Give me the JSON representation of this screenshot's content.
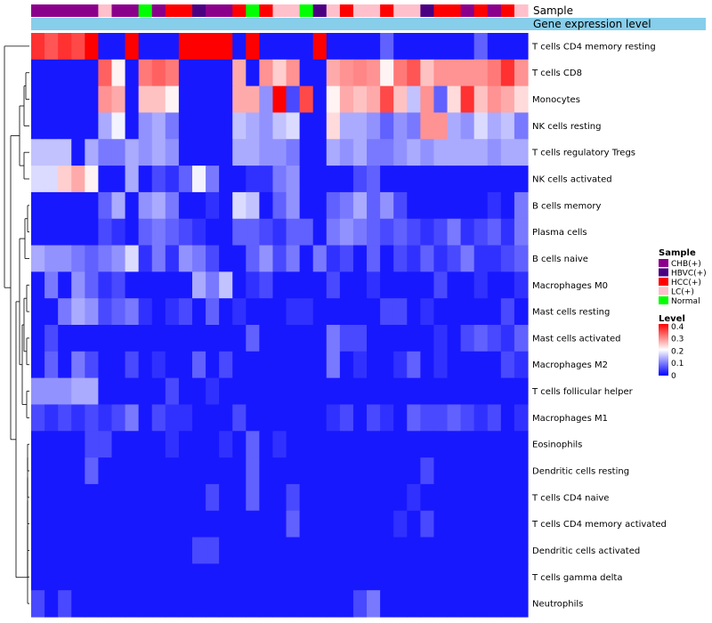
{
  "chart_data": {
    "type": "heatmap",
    "annotation_labels": {
      "sample": "Sample",
      "gene_level": "Gene expression level"
    },
    "sample_legend": {
      "title": "Sample",
      "entries": [
        {
          "label": "CHB(+)",
          "color": "#8B008B"
        },
        {
          "label": "HBVC(+)",
          "color": "#4B0082"
        },
        {
          "label": "HCC(+)",
          "color": "#FF0000"
        },
        {
          "label": "LC(+)",
          "color": "#FFC0CB"
        },
        {
          "label": "Normal",
          "color": "#00FF00"
        }
      ]
    },
    "level_legend": {
      "title": "Level",
      "ticks": [
        "0.4",
        "0.3",
        "0.2",
        "0.1",
        "0"
      ],
      "tick_values": [
        0.4,
        0.3,
        0.2,
        0.1,
        0
      ],
      "range": [
        0,
        0.42
      ],
      "colors": [
        "#0000FF",
        "#FFFFFF",
        "#FF0000"
      ]
    },
    "sample_groups": [
      "CHB",
      "CHB",
      "CHB",
      "CHB",
      "CHB",
      "LC",
      "CHB",
      "CHB",
      "Normal",
      "CHB",
      "HCC",
      "HCC",
      "HBVC",
      "CHB",
      "CHB",
      "HCC",
      "Normal",
      "HCC",
      "LC",
      "LC",
      "Normal",
      "HBVC",
      "LC",
      "HCC",
      "LC",
      "LC",
      "HCC",
      "LC",
      "LC",
      "HBVC",
      "HCC",
      "HCC",
      "CHB",
      "HCC",
      "CHB",
      "HCC",
      "LC"
    ],
    "rows": [
      {
        "label": "T cells CD4 memory resting",
        "values": [
          0.38,
          0.35,
          0.38,
          0.36,
          0.42,
          0.02,
          0.02,
          0.42,
          0.02,
          0.02,
          0.02,
          0.42,
          0.42,
          0.42,
          0.42,
          0.02,
          0.42,
          0.02,
          0.02,
          0.02,
          0.02,
          0.42,
          0.02,
          0.02,
          0.02,
          0.02,
          0.08,
          0.02,
          0.02,
          0.02,
          0.02,
          0.02,
          0.02,
          0.08,
          0.02,
          0.02,
          0.02
        ]
      },
      {
        "label": "T cells CD8",
        "values": [
          0.02,
          0.02,
          0.02,
          0.02,
          0.02,
          0.34,
          0.22,
          0.02,
          0.32,
          0.34,
          0.32,
          0.02,
          0.02,
          0.02,
          0.02,
          0.28,
          0.02,
          0.3,
          0.25,
          0.3,
          0.02,
          0.02,
          0.28,
          0.3,
          0.31,
          0.3,
          0.22,
          0.32,
          0.35,
          0.26,
          0.3,
          0.3,
          0.3,
          0.3,
          0.32,
          0.38,
          0.3
        ]
      },
      {
        "label": "Monocytes",
        "values": [
          0.02,
          0.02,
          0.02,
          0.02,
          0.02,
          0.3,
          0.28,
          0.02,
          0.26,
          0.26,
          0.22,
          0.02,
          0.02,
          0.02,
          0.02,
          0.28,
          0.28,
          0.12,
          0.42,
          0.06,
          0.36,
          0.02,
          0.22,
          0.28,
          0.26,
          0.28,
          0.36,
          0.26,
          0.16,
          0.3,
          0.08,
          0.24,
          0.38,
          0.26,
          0.3,
          0.28,
          0.24
        ]
      },
      {
        "label": "NK cells resting",
        "values": [
          0.02,
          0.02,
          0.02,
          0.02,
          0.02,
          0.14,
          0.2,
          0.02,
          0.12,
          0.14,
          0.1,
          0.02,
          0.02,
          0.02,
          0.02,
          0.16,
          0.14,
          0.12,
          0.16,
          0.18,
          0.02,
          0.02,
          0.24,
          0.14,
          0.14,
          0.12,
          0.08,
          0.12,
          0.1,
          0.3,
          0.3,
          0.14,
          0.12,
          0.18,
          0.14,
          0.16,
          0.1
        ]
      },
      {
        "label": "T cells regulatory  Tregs",
        "values": [
          0.16,
          0.16,
          0.16,
          0.02,
          0.14,
          0.1,
          0.1,
          0.14,
          0.12,
          0.14,
          0.12,
          0.02,
          0.02,
          0.02,
          0.02,
          0.14,
          0.14,
          0.12,
          0.12,
          0.1,
          0.02,
          0.02,
          0.14,
          0.12,
          0.14,
          0.1,
          0.1,
          0.12,
          0.14,
          0.12,
          0.14,
          0.14,
          0.14,
          0.14,
          0.12,
          0.14,
          0.14
        ]
      },
      {
        "label": "NK cells activated",
        "values": [
          0.18,
          0.18,
          0.25,
          0.28,
          0.22,
          0.02,
          0.02,
          0.14,
          0.02,
          0.06,
          0.04,
          0.08,
          0.2,
          0.1,
          0.02,
          0.02,
          0.04,
          0.04,
          0.1,
          0.12,
          0.02,
          0.02,
          0.02,
          0.02,
          0.06,
          0.08,
          0.02,
          0.02,
          0.02,
          0.02,
          0.02,
          0.02,
          0.02,
          0.02,
          0.02,
          0.02,
          0.02
        ]
      },
      {
        "label": "B cells memory",
        "values": [
          0.02,
          0.02,
          0.02,
          0.02,
          0.02,
          0.08,
          0.14,
          0.02,
          0.12,
          0.14,
          0.1,
          0.02,
          0.02,
          0.04,
          0.02,
          0.18,
          0.16,
          0.02,
          0.08,
          0.12,
          0.02,
          0.02,
          0.08,
          0.1,
          0.14,
          0.08,
          0.12,
          0.06,
          0.02,
          0.02,
          0.02,
          0.02,
          0.02,
          0.02,
          0.04,
          0.02,
          0.1
        ]
      },
      {
        "label": "Plasma cells",
        "values": [
          0.02,
          0.02,
          0.02,
          0.02,
          0.02,
          0.06,
          0.04,
          0.02,
          0.08,
          0.1,
          0.08,
          0.06,
          0.04,
          0.02,
          0.02,
          0.08,
          0.08,
          0.06,
          0.04,
          0.08,
          0.08,
          0.02,
          0.1,
          0.12,
          0.1,
          0.08,
          0.06,
          0.08,
          0.06,
          0.04,
          0.06,
          0.1,
          0.04,
          0.06,
          0.08,
          0.04,
          0.1
        ]
      },
      {
        "label": "B cells naive",
        "values": [
          0.14,
          0.12,
          0.12,
          0.1,
          0.08,
          0.1,
          0.12,
          0.18,
          0.04,
          0.1,
          0.04,
          0.12,
          0.1,
          0.06,
          0.02,
          0.02,
          0.08,
          0.12,
          0.06,
          0.1,
          0.02,
          0.1,
          0.04,
          0.06,
          0.02,
          0.08,
          0.02,
          0.06,
          0.04,
          0.08,
          0.04,
          0.06,
          0.1,
          0.04,
          0.04,
          0.06,
          0.08
        ]
      },
      {
        "label": "Macrophages M0",
        "values": [
          0.02,
          0.1,
          0.02,
          0.12,
          0.08,
          0.04,
          0.06,
          0.02,
          0.02,
          0.02,
          0.02,
          0.02,
          0.14,
          0.1,
          0.16,
          0.02,
          0.04,
          0.06,
          0.02,
          0.02,
          0.02,
          0.02,
          0.06,
          0.02,
          0.02,
          0.04,
          0.02,
          0.02,
          0.02,
          0.02,
          0.06,
          0.02,
          0.02,
          0.04,
          0.02,
          0.02,
          0.04
        ]
      },
      {
        "label": "Mast cells resting",
        "values": [
          0.02,
          0.02,
          0.1,
          0.14,
          0.12,
          0.06,
          0.08,
          0.1,
          0.04,
          0.02,
          0.04,
          0.06,
          0.02,
          0.08,
          0.02,
          0.04,
          0.02,
          0.02,
          0.02,
          0.04,
          0.04,
          0.02,
          0.02,
          0.02,
          0.02,
          0.02,
          0.06,
          0.06,
          0.02,
          0.04,
          0.02,
          0.02,
          0.02,
          0.02,
          0.02,
          0.06,
          0.02
        ]
      },
      {
        "label": "Mast cells activated",
        "values": [
          0.02,
          0.06,
          0.02,
          0.02,
          0.02,
          0.02,
          0.02,
          0.02,
          0.02,
          0.02,
          0.02,
          0.02,
          0.02,
          0.02,
          0.02,
          0.02,
          0.08,
          0.02,
          0.02,
          0.02,
          0.02,
          0.02,
          0.1,
          0.06,
          0.06,
          0.02,
          0.02,
          0.02,
          0.02,
          0.02,
          0.04,
          0.02,
          0.06,
          0.08,
          0.06,
          0.04,
          0.08
        ]
      },
      {
        "label": "Macrophages M2",
        "values": [
          0.02,
          0.08,
          0.02,
          0.1,
          0.06,
          0.02,
          0.02,
          0.06,
          0.02,
          0.04,
          0.02,
          0.02,
          0.08,
          0.02,
          0.06,
          0.02,
          0.02,
          0.02,
          0.02,
          0.02,
          0.02,
          0.02,
          0.1,
          0.02,
          0.04,
          0.02,
          0.02,
          0.04,
          0.08,
          0.02,
          0.04,
          0.02,
          0.02,
          0.02,
          0.02,
          0.06,
          0.04
        ]
      },
      {
        "label": "T cells follicular helper",
        "values": [
          0.12,
          0.12,
          0.12,
          0.14,
          0.14,
          0.02,
          0.02,
          0.02,
          0.02,
          0.02,
          0.06,
          0.02,
          0.02,
          0.04,
          0.02,
          0.02,
          0.02,
          0.02,
          0.02,
          0.02,
          0.02,
          0.02,
          0.02,
          0.02,
          0.02,
          0.02,
          0.02,
          0.02,
          0.02,
          0.02,
          0.02,
          0.02,
          0.02,
          0.02,
          0.02,
          0.02,
          0.02
        ]
      },
      {
        "label": "Macrophages M1",
        "values": [
          0.06,
          0.04,
          0.06,
          0.04,
          0.06,
          0.04,
          0.06,
          0.1,
          0.02,
          0.06,
          0.04,
          0.04,
          0.02,
          0.02,
          0.02,
          0.06,
          0.02,
          0.02,
          0.02,
          0.02,
          0.02,
          0.02,
          0.04,
          0.06,
          0.02,
          0.06,
          0.04,
          0.02,
          0.08,
          0.06,
          0.06,
          0.08,
          0.06,
          0.04,
          0.06,
          0.02,
          0.04
        ]
      },
      {
        "label": "Eosinophils",
        "values": [
          0.02,
          0.02,
          0.02,
          0.02,
          0.06,
          0.06,
          0.02,
          0.02,
          0.02,
          0.02,
          0.04,
          0.02,
          0.02,
          0.02,
          0.04,
          0.02,
          0.08,
          0.02,
          0.04,
          0.02,
          0.02,
          0.02,
          0.02,
          0.02,
          0.02,
          0.02,
          0.02,
          0.02,
          0.02,
          0.02,
          0.02,
          0.02,
          0.02,
          0.02,
          0.02,
          0.02,
          0.02
        ]
      },
      {
        "label": "Dendritic cells resting",
        "values": [
          0.02,
          0.02,
          0.02,
          0.02,
          0.08,
          0.02,
          0.02,
          0.02,
          0.02,
          0.02,
          0.02,
          0.02,
          0.02,
          0.02,
          0.02,
          0.02,
          0.08,
          0.02,
          0.02,
          0.02,
          0.02,
          0.02,
          0.02,
          0.02,
          0.02,
          0.02,
          0.02,
          0.02,
          0.02,
          0.06,
          0.02,
          0.02,
          0.02,
          0.02,
          0.02,
          0.02,
          0.02
        ]
      },
      {
        "label": "T cells CD4 naive",
        "values": [
          0.02,
          0.02,
          0.02,
          0.02,
          0.02,
          0.02,
          0.02,
          0.02,
          0.02,
          0.02,
          0.02,
          0.02,
          0.02,
          0.06,
          0.02,
          0.02,
          0.08,
          0.02,
          0.02,
          0.06,
          0.02,
          0.02,
          0.02,
          0.02,
          0.02,
          0.02,
          0.02,
          0.02,
          0.04,
          0.02,
          0.02,
          0.02,
          0.02,
          0.02,
          0.02,
          0.02,
          0.02
        ]
      },
      {
        "label": "T cells CD4 memory activated",
        "values": [
          0.02,
          0.02,
          0.02,
          0.02,
          0.02,
          0.02,
          0.02,
          0.02,
          0.02,
          0.02,
          0.02,
          0.02,
          0.02,
          0.02,
          0.02,
          0.02,
          0.02,
          0.02,
          0.02,
          0.08,
          0.02,
          0.02,
          0.02,
          0.02,
          0.02,
          0.02,
          0.02,
          0.04,
          0.02,
          0.06,
          0.02,
          0.02,
          0.02,
          0.02,
          0.02,
          0.02,
          0.02
        ]
      },
      {
        "label": "Dendritic cells activated",
        "values": [
          0.02,
          0.02,
          0.02,
          0.02,
          0.02,
          0.02,
          0.02,
          0.02,
          0.02,
          0.02,
          0.02,
          0.02,
          0.06,
          0.06,
          0.02,
          0.02,
          0.02,
          0.02,
          0.02,
          0.02,
          0.02,
          0.02,
          0.02,
          0.02,
          0.02,
          0.02,
          0.02,
          0.02,
          0.02,
          0.02,
          0.02,
          0.02,
          0.02,
          0.02,
          0.02,
          0.02,
          0.02
        ]
      },
      {
        "label": "T cells gamma delta",
        "values": [
          0.02,
          0.02,
          0.02,
          0.02,
          0.02,
          0.02,
          0.02,
          0.02,
          0.02,
          0.02,
          0.02,
          0.02,
          0.02,
          0.02,
          0.02,
          0.02,
          0.02,
          0.02,
          0.02,
          0.02,
          0.02,
          0.02,
          0.02,
          0.02,
          0.02,
          0.02,
          0.02,
          0.02,
          0.02,
          0.02,
          0.02,
          0.02,
          0.02,
          0.02,
          0.02,
          0.02,
          0.02
        ]
      },
      {
        "label": "Neutrophils",
        "values": [
          0.06,
          0.02,
          0.06,
          0.02,
          0.02,
          0.02,
          0.02,
          0.02,
          0.02,
          0.02,
          0.02,
          0.02,
          0.02,
          0.02,
          0.02,
          0.02,
          0.02,
          0.02,
          0.02,
          0.02,
          0.02,
          0.02,
          0.02,
          0.02,
          0.06,
          0.1,
          0.02,
          0.02,
          0.02,
          0.02,
          0.02,
          0.02,
          0.02,
          0.02,
          0.02,
          0.02,
          0.02
        ]
      }
    ]
  }
}
